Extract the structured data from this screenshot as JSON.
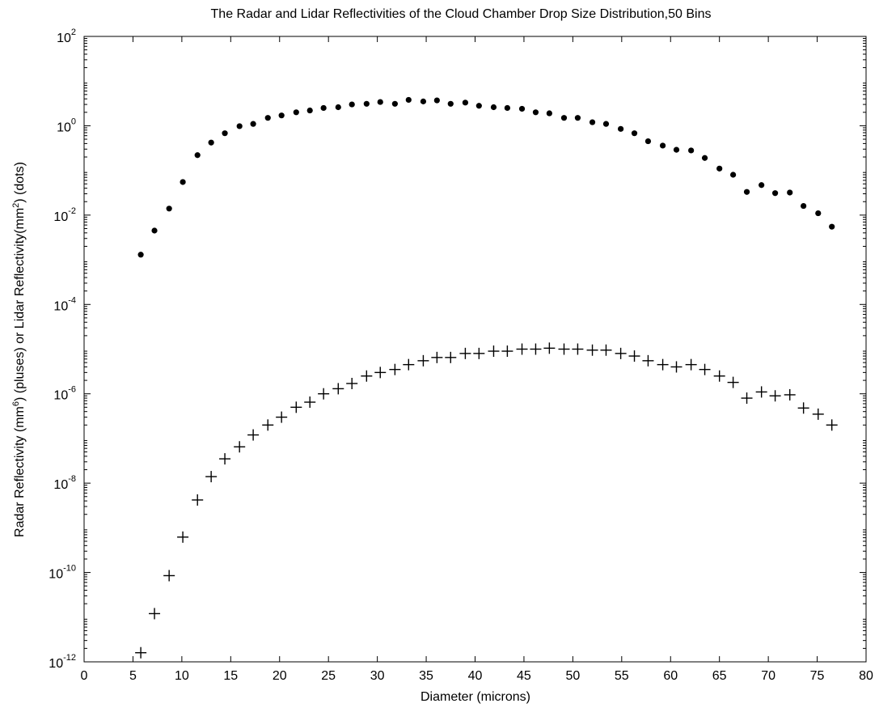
{
  "chart_data": {
    "type": "scatter",
    "title": "The Radar and Lidar Reflectivities of the Cloud Chamber Drop Size Distribution,50 Bins",
    "xlabel": "Diameter (microns)",
    "ylabel": {
      "part1": "Radar Reflectivity (mm",
      "sup1": "6",
      "part2": ") (pluses) or Lidar Reflectivity(mm",
      "sup2": "2",
      "part3": ") (dots)"
    },
    "xlim": [
      0,
      80
    ],
    "ylim": [
      1e-12,
      100
    ],
    "yscale": "log",
    "grid": false,
    "x_ticks": [
      "0",
      "5",
      "10",
      "15",
      "20",
      "25",
      "30",
      "35",
      "40",
      "45",
      "50",
      "55",
      "60",
      "65",
      "70",
      "75",
      "80"
    ],
    "y_ticks": [
      {
        "base": "10",
        "exp": "-12",
        "value": 1e-12
      },
      {
        "base": "10",
        "exp": "-10",
        "value": 1e-10
      },
      {
        "base": "10",
        "exp": "-8",
        "value": 1e-08
      },
      {
        "base": "10",
        "exp": "-6",
        "value": 1e-06
      },
      {
        "base": "10",
        "exp": "-4",
        "value": 0.0001
      },
      {
        "base": "10",
        "exp": "-2",
        "value": 0.01
      },
      {
        "base": "10",
        "exp": "0",
        "value": 1
      },
      {
        "base": "10",
        "exp": "2",
        "value": 100
      }
    ],
    "x": [
      5.8,
      7.2,
      8.7,
      10.1,
      11.6,
      13.0,
      14.4,
      15.9,
      17.3,
      18.8,
      20.2,
      21.7,
      23.1,
      24.5,
      26.0,
      27.4,
      28.9,
      30.3,
      31.8,
      33.2,
      34.7,
      36.1,
      37.5,
      39.0,
      40.4,
      41.9,
      43.3,
      44.8,
      46.2,
      47.6,
      49.1,
      50.5,
      52.0,
      53.4,
      54.9,
      56.3,
      57.7,
      59.2,
      60.6,
      62.1,
      63.5,
      65.0,
      66.4,
      67.8,
      69.3,
      70.7,
      72.2,
      73.6,
      75.1,
      76.5
    ],
    "series": [
      {
        "marker": "dot",
        "values": [
          0.0013,
          0.0045,
          0.014,
          0.055,
          0.22,
          0.42,
          0.68,
          0.98,
          1.1,
          1.5,
          1.7,
          2.0,
          2.2,
          2.5,
          2.6,
          3.0,
          3.1,
          3.4,
          3.1,
          3.8,
          3.5,
          3.7,
          3.1,
          3.3,
          2.8,
          2.6,
          2.5,
          2.4,
          2.0,
          1.9,
          1.5,
          1.5,
          1.2,
          1.1,
          0.85,
          0.68,
          0.45,
          0.36,
          0.29,
          0.28,
          0.19,
          0.11,
          0.08,
          0.033,
          0.047,
          0.031,
          0.032,
          0.016,
          0.011,
          0.0055
        ]
      },
      {
        "marker": "plus",
        "values": [
          1.6e-12,
          1.2e-11,
          8.5e-11,
          6.2e-10,
          4.2e-09,
          1.4e-08,
          3.5e-08,
          6.5e-08,
          1.2e-07,
          2e-07,
          3e-07,
          5e-07,
          6.5e-07,
          1e-06,
          1.3e-06,
          1.7e-06,
          2.5e-06,
          3e-06,
          3.5e-06,
          4.5e-06,
          5.5e-06,
          6.5e-06,
          6.5e-06,
          8e-06,
          8e-06,
          9e-06,
          9e-06,
          1e-05,
          1e-05,
          1.05e-05,
          1e-05,
          1e-05,
          9.5e-06,
          9.5e-06,
          8e-06,
          7e-06,
          5.5e-06,
          4.5e-06,
          4e-06,
          4.5e-06,
          3.5e-06,
          2.5e-06,
          1.8e-06,
          8e-07,
          1.1e-06,
          9e-07,
          9.5e-07,
          4.8e-07,
          3.5e-07,
          2e-07
        ]
      }
    ]
  }
}
